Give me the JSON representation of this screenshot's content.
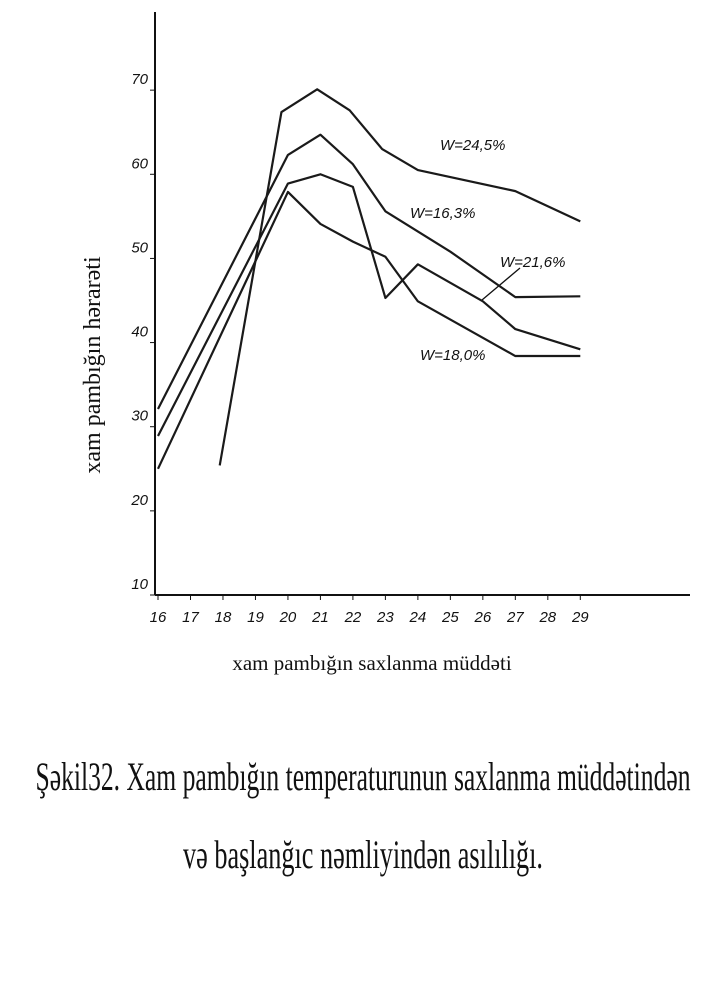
{
  "chart_data": {
    "type": "line",
    "x_label": "xam pambığın saxlanma müddəti",
    "y_label": "xam pambığın hərarəti",
    "caption": [
      "Şəkil32. Xam pambığın temperaturunun saxlanma müddətindən",
      "və başlanğıc nəmliyindən asılılığı."
    ],
    "xlim": [
      16,
      32.5
    ],
    "ylim": [
      10,
      80
    ],
    "xticks": [
      16,
      17,
      18,
      19,
      20,
      21,
      22,
      23,
      24,
      25,
      26,
      27,
      28,
      29
    ],
    "yticks": [
      10,
      20,
      30,
      40,
      50,
      60,
      70
    ],
    "grid": false,
    "series": [
      {
        "name": "W=24,5%",
        "color": "#1a1a1a",
        "x": [
          17.9,
          19.8,
          20.9,
          21.9,
          22.9,
          24,
          27,
          29
        ],
        "values": [
          25.4,
          67.4,
          70.1,
          67.6,
          63,
          60.5,
          58,
          54.4
        ]
      },
      {
        "name": "W=16,3%",
        "color": "#1a1a1a",
        "x": [
          16,
          20,
          21,
          22,
          23,
          25,
          27,
          29
        ],
        "values": [
          32.1,
          62.3,
          64.7,
          61.2,
          55.6,
          50.8,
          45.4,
          45.5
        ]
      },
      {
        "name": "W=21,6%",
        "color": "#1a1a1a",
        "x": [
          16,
          20,
          21,
          22,
          23,
          24,
          26,
          27,
          29
        ],
        "values": [
          28.9,
          58.9,
          60,
          58.5,
          45.3,
          49.3,
          44.9,
          41.6,
          39.2
        ]
      },
      {
        "name": "W=18,0%",
        "color": "#1a1a1a",
        "x": [
          16,
          20,
          21,
          22,
          23,
          24,
          27,
          29
        ],
        "values": [
          25,
          57.9,
          54.1,
          52,
          50.2,
          44.9,
          38.4,
          38.4
        ]
      }
    ]
  }
}
